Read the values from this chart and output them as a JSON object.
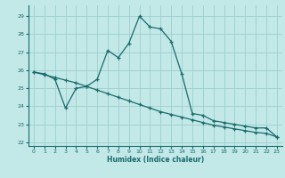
{
  "title": "",
  "xlabel": "Humidex (Indice chaleur)",
  "bg_color": "#c2e8e8",
  "grid_color": "#9ecece",
  "line_color": "#1a6b6b",
  "xlim": [
    -0.5,
    23.5
  ],
  "ylim": [
    21.8,
    29.6
  ],
  "yticks": [
    22,
    23,
    24,
    25,
    26,
    27,
    28,
    29
  ],
  "xticks": [
    0,
    1,
    2,
    3,
    4,
    5,
    6,
    7,
    8,
    9,
    10,
    11,
    12,
    13,
    14,
    15,
    16,
    17,
    18,
    19,
    20,
    21,
    22,
    23
  ],
  "line1_x": [
    0,
    1,
    2,
    3,
    4,
    5,
    6,
    7,
    8,
    9,
    10,
    11,
    12,
    13,
    14,
    15,
    16,
    17,
    18,
    19,
    20,
    21,
    22,
    23
  ],
  "line1_y": [
    25.9,
    25.8,
    25.5,
    23.9,
    25.0,
    25.1,
    25.5,
    27.1,
    26.7,
    27.5,
    29.0,
    28.4,
    28.3,
    27.6,
    25.8,
    23.6,
    23.5,
    23.2,
    23.1,
    23.0,
    22.9,
    22.8,
    22.8,
    22.3
  ],
  "line2_x": [
    0,
    1,
    2,
    3,
    4,
    5,
    6,
    7,
    8,
    9,
    10,
    11,
    12,
    13,
    14,
    15,
    16,
    17,
    18,
    19,
    20,
    21,
    22,
    23
  ],
  "line2_y": [
    25.9,
    25.75,
    25.6,
    25.45,
    25.3,
    25.1,
    24.9,
    24.7,
    24.5,
    24.3,
    24.1,
    23.9,
    23.7,
    23.55,
    23.4,
    23.25,
    23.1,
    22.95,
    22.85,
    22.75,
    22.65,
    22.55,
    22.5,
    22.3
  ]
}
